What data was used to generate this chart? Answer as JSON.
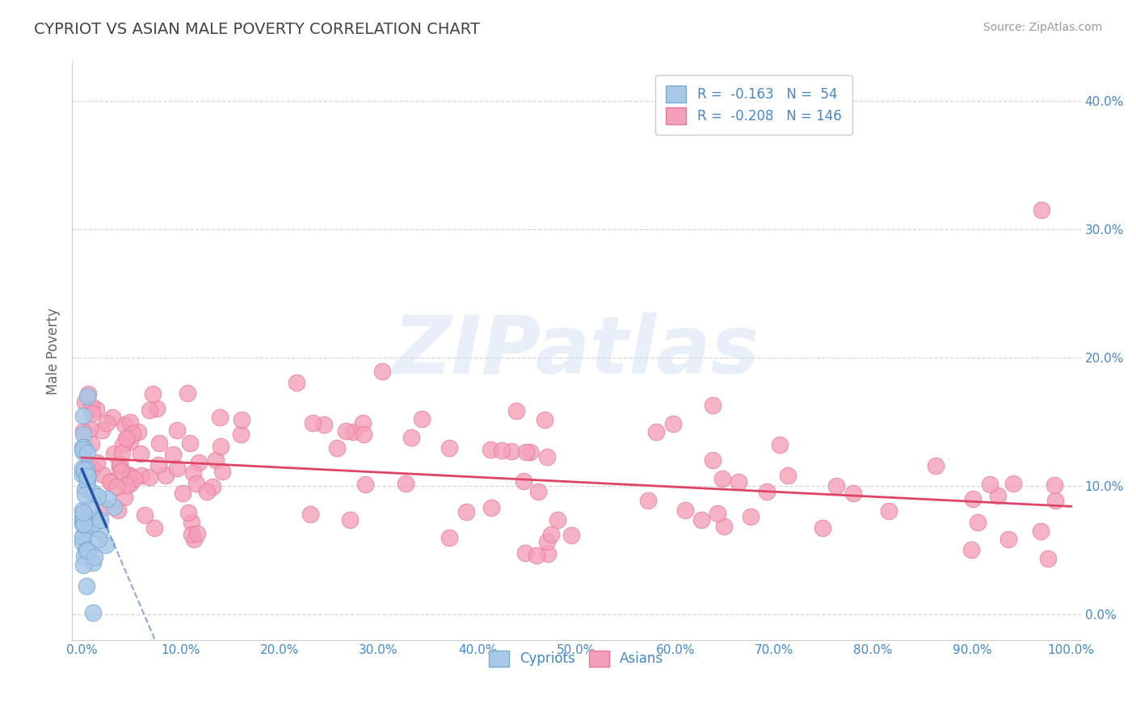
{
  "title": "CYPRIOT VS ASIAN MALE POVERTY CORRELATION CHART",
  "source": "Source: ZipAtlas.com",
  "ylabel": "Male Poverty",
  "xlim": [
    -0.01,
    1.01
  ],
  "ylim": [
    -0.02,
    0.43
  ],
  "xticks": [
    0.0,
    0.1,
    0.2,
    0.3,
    0.4,
    0.5,
    0.6,
    0.7,
    0.8,
    0.9,
    1.0
  ],
  "xticklabels": [
    "0.0%",
    "10.0%",
    "20.0%",
    "30.0%",
    "40.0%",
    "50.0%",
    "60.0%",
    "70.0%",
    "80.0%",
    "90.0%",
    "100.0%"
  ],
  "yticks": [
    0.0,
    0.1,
    0.2,
    0.3,
    0.4
  ],
  "yticklabels": [
    "0.0%",
    "10.0%",
    "20.0%",
    "30.0%",
    "40.0%"
  ],
  "cypriot_color": "#a8c8e8",
  "asian_color": "#f4a0b8",
  "cypriot_edge": "#7aaad0",
  "asian_edge": "#e87898",
  "trend_cypriot_solid": "#2255aa",
  "trend_cypriot_dash": "#5588cc",
  "trend_asian": "#dd4466",
  "R_cypriot": -0.163,
  "N_cypriot": 54,
  "R_asian": -0.208,
  "N_asian": 146,
  "legend_labels": [
    "Cypriots",
    "Asians"
  ],
  "watermark_text": "ZIPatlas",
  "background_color": "#ffffff",
  "grid_color": "#cccccc",
  "title_color": "#444444",
  "axis_label_color": "#666666",
  "tick_color": "#4488cc",
  "legend_text_color": "#4488cc",
  "cypriot_trend_intercept": 0.113,
  "cypriot_trend_slope": -1.8,
  "asian_trend_intercept": 0.122,
  "asian_trend_slope": -0.038
}
